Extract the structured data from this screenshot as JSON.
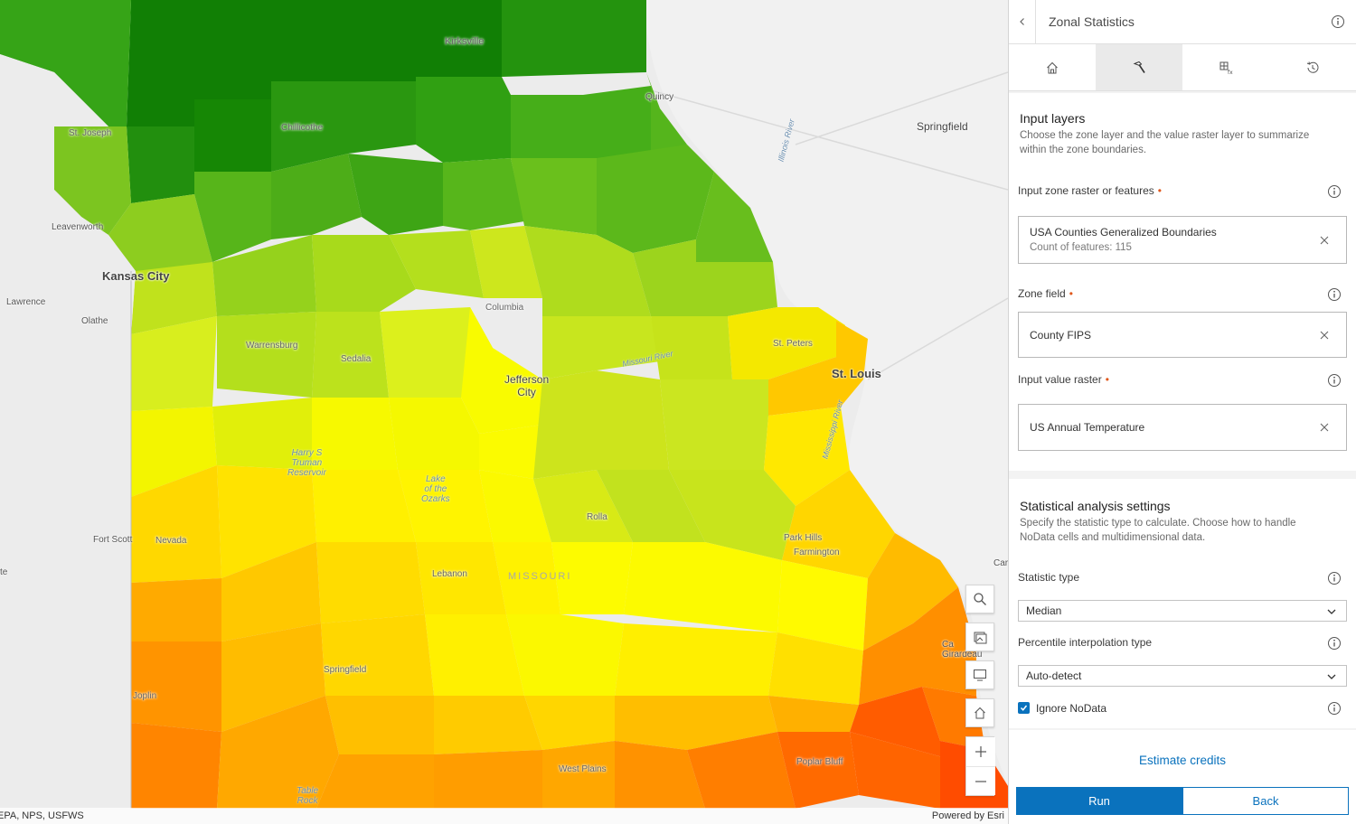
{
  "map": {
    "labels": {
      "kirksville": "Kirksville",
      "quincy": "Quincy",
      "springfield_il": "Springfield",
      "st_joseph": "St. Joseph",
      "chillicothe": "Chillicothe",
      "leavenworth": "Leavenworth",
      "kansas_city": "Kansas City",
      "lawrence": "Lawrence",
      "olathe": "Olathe",
      "columbia": "Columbia",
      "st_peters": "St. Peters",
      "st_louis": "St. Louis",
      "warrensburg": "Warrensburg",
      "sedalia": "Sedalia",
      "jefferson_city": "Jefferson\nCity",
      "harry_s_truman": "Harry S\nTruman\nReservoir",
      "lake_ozarks": "Lake\nof the\nOzarks",
      "rolla": "Rolla",
      "park_hills": "Park Hills",
      "farmington": "Farmington",
      "fort_scott": "Fort Scott",
      "nevada": "Nevada",
      "lebanon": "Lebanon",
      "missouri": "MISSOURI",
      "springfield_mo": "Springfield",
      "joplin": "Joplin",
      "west_plains": "West Plains",
      "poplar_bluff": "Poplar Bluff",
      "table_rock": "Table\nRock",
      "illinois_river": "Illinois River",
      "missouri_river": "Missouri River",
      "mississippi_river": "Mississippi River",
      "cape_girardeau": "Ca\nGirardeau",
      "car": "Car",
      "te": "te"
    },
    "attribution_left": "EPA, NPS, USFWS",
    "attribution_right": "Powered by Esri",
    "tools": [
      "search-icon",
      "basemap-icon",
      "fullscreen-icon",
      "home-icon",
      "zoom-in-icon",
      "zoom-out-icon"
    ]
  },
  "panel": {
    "title": "Zonal Statistics",
    "tabs": [
      "home-icon",
      "hammer-icon",
      "raster-function-icon",
      "history-icon"
    ],
    "active_tab": 1,
    "input_layers": {
      "title": "Input layers",
      "description": "Choose the zone layer and the value raster layer to summarize within the zone boundaries.",
      "zone_label": "Input zone raster or features",
      "zone_value": "USA Counties Generalized Boundaries",
      "zone_count": "Count of features: 115",
      "zone_field_label": "Zone field",
      "zone_field_value": "County FIPS",
      "value_raster_label": "Input value raster",
      "value_raster_value": "US Annual Temperature"
    },
    "stat_settings": {
      "title": "Statistical analysis settings",
      "description": "Specify the statistic type to calculate. Choose how to handle NoData cells and multidimensional data.",
      "stat_type_label": "Statistic type",
      "stat_type_value": "Median",
      "percentile_label": "Percentile interpolation type",
      "percentile_value": "Auto-detect",
      "ignore_nodata_label": "Ignore NoData",
      "ignore_nodata_checked": true
    },
    "estimate_label": "Estimate credits",
    "run_label": "Run",
    "back_label": "Back"
  },
  "colors": {
    "accent": "#0a72bd",
    "required": "#e0571b"
  }
}
